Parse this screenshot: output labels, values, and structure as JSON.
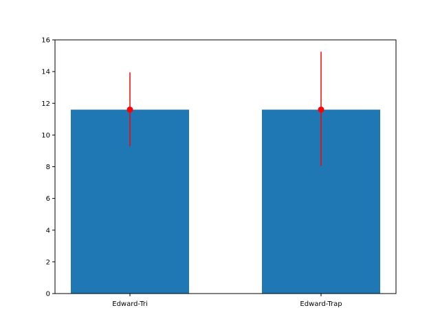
{
  "chart_data": {
    "type": "bar",
    "categories": [
      "Edward-Tri",
      "Edward-Trap"
    ],
    "values": [
      11.6,
      11.6
    ],
    "errors": [
      {
        "low": 9.3,
        "high": 13.95
      },
      {
        "low": 8.05,
        "high": 15.25
      }
    ],
    "ylim": [
      0,
      16
    ],
    "yticks": [
      "0",
      "2",
      "4",
      "6",
      "8",
      "10",
      "12",
      "14",
      "16"
    ],
    "grid": false,
    "title": "",
    "xlabel": "",
    "ylabel": "",
    "colors": {
      "bar": "#1f77b4",
      "error": "#ff0000",
      "point": "#ff0000"
    }
  }
}
